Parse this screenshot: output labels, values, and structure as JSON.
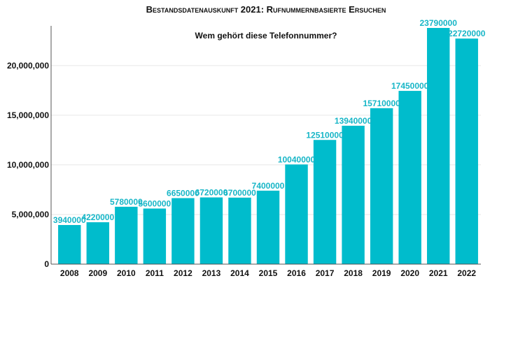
{
  "chart_data": {
    "type": "bar",
    "title": "Bestandsdatenauskunft 2021: Rufnummernbasierte Ersuchen",
    "subtitle": "Wem gehört diese Telefonnummer?",
    "xlabel": "",
    "ylabel": "",
    "categories": [
      "2008",
      "2009",
      "2010",
      "2011",
      "2012",
      "2013",
      "2014",
      "2015",
      "2016",
      "2017",
      "2018",
      "2019",
      "2020",
      "2021",
      "2022"
    ],
    "values": [
      3940000,
      4220000,
      5780000,
      5600000,
      6650000,
      6720000,
      6700000,
      7400000,
      10040000,
      12510000,
      13940000,
      15710000,
      17450000,
      23790000,
      22720000
    ],
    "data_labels": [
      "3940000",
      "4220000",
      "5780000",
      "5600000",
      "6650000",
      "6720000",
      "6700000",
      "7400000",
      "10040000",
      "12510000",
      "13940000",
      "15710000",
      "17450000",
      "23790000",
      "22720000"
    ],
    "y_ticks": [
      0,
      5000000,
      10000000,
      15000000,
      20000000
    ],
    "y_tick_labels": [
      "0",
      "5,000,000",
      "10,000,000",
      "15,000,000",
      "20,000,000"
    ],
    "ylim": [
      0,
      24000000
    ],
    "grid": true,
    "legend": "none",
    "colors": {
      "bar": "#00bccc",
      "label": "#17b6c7",
      "grid": "#e6e6e6",
      "axis": "#555555"
    }
  }
}
